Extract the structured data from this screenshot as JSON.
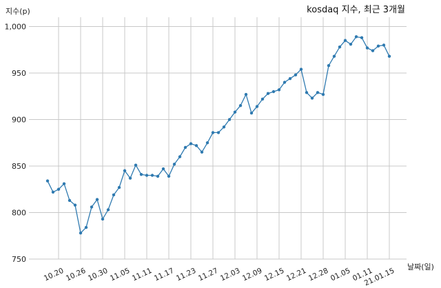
{
  "chart_data": {
    "type": "line",
    "title": "kosdaq 지수, 최근 3개월",
    "ylabel": "지수(p)",
    "xlabel": "날짜(일)",
    "ylim": [
      750,
      1010
    ],
    "yticks": [
      750,
      800,
      850,
      900,
      950,
      1000
    ],
    "ytick_labels": [
      "750",
      "800",
      "850",
      "900",
      "950",
      "1,000"
    ],
    "grid": true,
    "color": "#2f7ab0",
    "xtick_labels": [
      "10.20",
      "10.26",
      "10.30",
      "11.05",
      "11.11",
      "11.17",
      "11.23",
      "11.27",
      "12.03",
      "12.09",
      "12.15",
      "12.21",
      "12.28",
      "01.05",
      "01.11",
      "21.01.15"
    ],
    "values": [
      834,
      822,
      825,
      831,
      813,
      808,
      778,
      784,
      806,
      814,
      793,
      803,
      819,
      827,
      845,
      837,
      851,
      841,
      840,
      840,
      839,
      847,
      839,
      852,
      860,
      870,
      874,
      872,
      865,
      875,
      886,
      886,
      892,
      900,
      908,
      915,
      927,
      907,
      914,
      922,
      928,
      930,
      932,
      940,
      944,
      948,
      954,
      929,
      923,
      929,
      927,
      958,
      968,
      978,
      985,
      981,
      989,
      988,
      977,
      974,
      979,
      980,
      968
    ]
  }
}
